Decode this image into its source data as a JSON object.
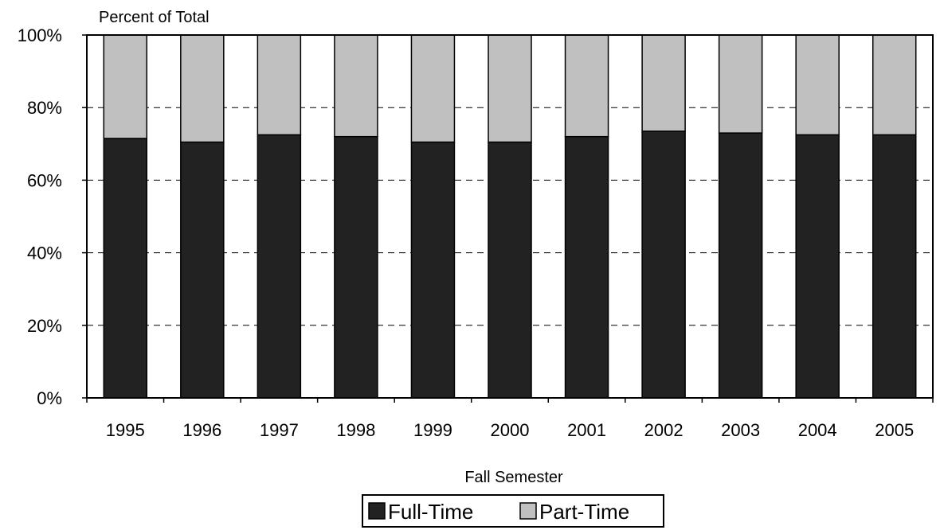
{
  "chart_data": {
    "type": "bar",
    "stacked": true,
    "percent_stacked": true,
    "ylabel": "Percent of Total",
    "xlabel": "Fall Semester",
    "categories": [
      "1995",
      "1996",
      "1997",
      "1998",
      "1999",
      "2000",
      "2001",
      "2002",
      "2003",
      "2004",
      "2005"
    ],
    "series": [
      {
        "name": "Full-Time",
        "color": "#222222",
        "values": [
          71.5,
          70.5,
          72.5,
          72.0,
          70.5,
          70.5,
          72.0,
          73.5,
          73.0,
          72.5,
          72.5
        ]
      },
      {
        "name": "Part-Time",
        "color": "#c0c0c0",
        "values": [
          28.5,
          29.5,
          27.5,
          28.0,
          29.5,
          29.5,
          28.0,
          26.5,
          27.0,
          27.5,
          27.5
        ]
      }
    ],
    "ylim": [
      0,
      100
    ],
    "yticks": [
      "0%",
      "20%",
      "40%",
      "60%",
      "80%",
      "100%"
    ],
    "ytick_values": [
      0,
      20,
      40,
      60,
      80,
      100
    ],
    "grid": "horizontal dashed",
    "legend_position": "bottom-center"
  }
}
